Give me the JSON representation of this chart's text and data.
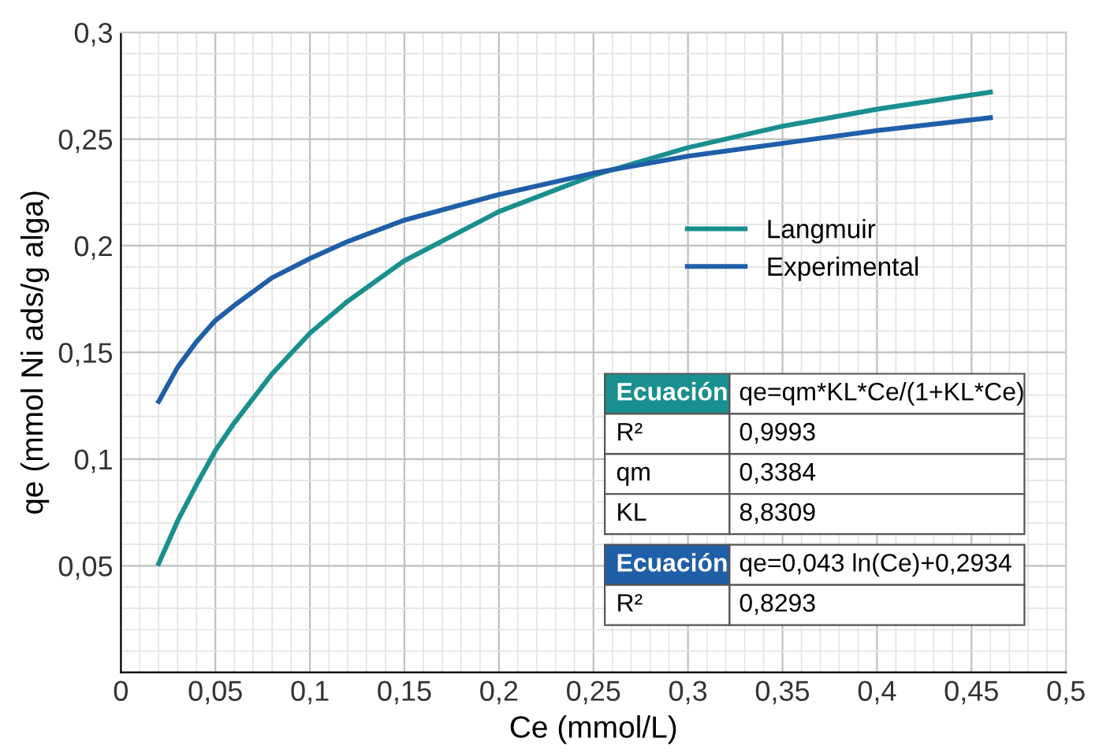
{
  "chart_data": {
    "type": "line",
    "xlabel": "Ce (mmol/L)",
    "ylabel": "qe (mmol Ni ads/g alga)",
    "x": [
      0.02,
      0.03,
      0.04,
      0.05,
      0.06,
      0.08,
      0.1,
      0.12,
      0.15,
      0.2,
      0.25,
      0.3,
      0.35,
      0.4,
      0.46
    ],
    "series": [
      {
        "name": "Langmuir",
        "color": "#1a8f8f",
        "values": [
          0.051,
          0.071,
          0.088,
          0.104,
          0.117,
          0.14,
          0.159,
          0.174,
          0.193,
          0.216,
          0.233,
          0.246,
          0.256,
          0.264,
          0.272
        ]
      },
      {
        "name": "Experimental",
        "color": "#1f5fa8",
        "values": [
          0.127,
          0.143,
          0.155,
          0.165,
          0.172,
          0.185,
          0.194,
          0.202,
          0.212,
          0.224,
          0.234,
          0.242,
          0.248,
          0.254,
          0.26
        ]
      }
    ],
    "xlim": [
      0,
      0.5
    ],
    "xticks": [
      0,
      {
        "value": 0.05,
        "label": "0,05"
      },
      {
        "value": 0.1,
        "label": "0,1"
      },
      {
        "value": 0.15,
        "label": "0,15"
      },
      {
        "value": 0.2,
        "label": "0,2"
      },
      {
        "value": 0.25,
        "label": "0,25"
      },
      {
        "value": 0.3,
        "label": "0,3"
      },
      {
        "value": 0.35,
        "label": "0,35"
      },
      {
        "value": 0.4,
        "label": "0,4"
      },
      {
        "value": 0.45,
        "label": "0,45"
      },
      {
        "value": 0.5,
        "label": "0,5"
      }
    ],
    "ylim": [
      0,
      0.3
    ],
    "yticks": [
      {
        "value": 0.05,
        "label": "0,05"
      },
      {
        "value": 0.1,
        "label": "0,1"
      },
      {
        "value": 0.15,
        "label": "0,15"
      },
      {
        "value": 0.2,
        "label": "0,2"
      },
      {
        "value": 0.25,
        "label": "0,25"
      },
      {
        "value": 0.3,
        "label": "0,3"
      }
    ],
    "grid": true,
    "legend": "right",
    "marker": "none",
    "line_style": "solid",
    "annotations": [
      "Ecuación",
      "qe=qm*KL*Ce/(1+KL*Ce)",
      "R²",
      "0,9993",
      "qm",
      "0,3384",
      "KL",
      "8,8309",
      "Ecuación",
      "qe=0,043 ln(Ce)+0,2934",
      "R²",
      "0,8293"
    ]
  }
}
